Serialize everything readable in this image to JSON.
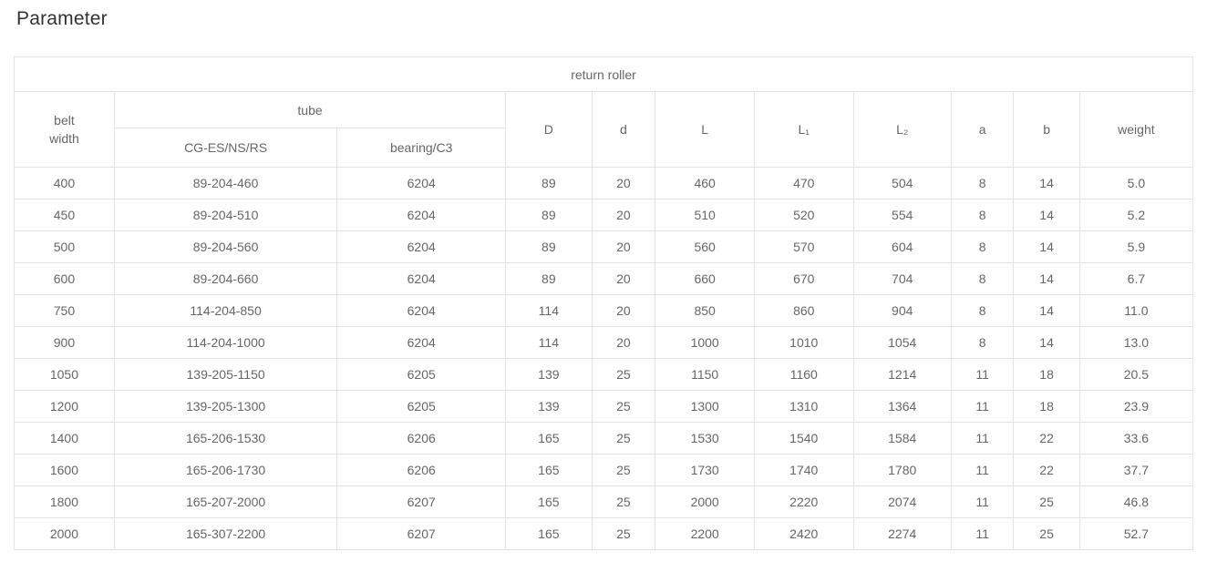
{
  "title": "Parameter",
  "colors": {
    "background": "#ffffff",
    "title_text": "#333333",
    "cell_text": "#666666",
    "border": "#e3e3e3"
  },
  "table": {
    "group_header": "return roller",
    "header": {
      "belt_width": "belt\nwidth",
      "tube": "tube",
      "tube_sub_cg": "CG-ES/NS/RS",
      "tube_sub_bearing": "bearing/C3",
      "D": "D",
      "d": "d",
      "L": "L",
      "L1": "L₁",
      "L2": "L₂",
      "a": "a",
      "b": "b",
      "weight": "weight"
    },
    "rows": [
      [
        "400",
        "89-204-460",
        "6204",
        "89",
        "20",
        "460",
        "470",
        "504",
        "8",
        "14",
        "5.0"
      ],
      [
        "450",
        "89-204-510",
        "6204",
        "89",
        "20",
        "510",
        "520",
        "554",
        "8",
        "14",
        "5.2"
      ],
      [
        "500",
        "89-204-560",
        "6204",
        "89",
        "20",
        "560",
        "570",
        "604",
        "8",
        "14",
        "5.9"
      ],
      [
        "600",
        "89-204-660",
        "6204",
        "89",
        "20",
        "660",
        "670",
        "704",
        "8",
        "14",
        "6.7"
      ],
      [
        "750",
        "114-204-850",
        "6204",
        "114",
        "20",
        "850",
        "860",
        "904",
        "8",
        "14",
        "11.0"
      ],
      [
        "900",
        "114-204-1000",
        "6204",
        "114",
        "20",
        "1000",
        "1010",
        "1054",
        "8",
        "14",
        "13.0"
      ],
      [
        "1050",
        "139-205-1150",
        "6205",
        "139",
        "25",
        "1150",
        "1160",
        "1214",
        "11",
        "18",
        "20.5"
      ],
      [
        "1200",
        "139-205-1300",
        "6205",
        "139",
        "25",
        "1300",
        "1310",
        "1364",
        "11",
        "18",
        "23.9"
      ],
      [
        "1400",
        "165-206-1530",
        "6206",
        "165",
        "25",
        "1530",
        "1540",
        "1584",
        "11",
        "22",
        "33.6"
      ],
      [
        "1600",
        "165-206-1730",
        "6206",
        "165",
        "25",
        "1730",
        "1740",
        "1780",
        "11",
        "22",
        "37.7"
      ],
      [
        "1800",
        "165-207-2000",
        "6207",
        "165",
        "25",
        "2000",
        "2220",
        "2074",
        "11",
        "25",
        "46.8"
      ],
      [
        "2000",
        "165-307-2200",
        "6207",
        "165",
        "25",
        "2200",
        "2420",
        "2274",
        "11",
        "25",
        "52.7"
      ]
    ]
  }
}
